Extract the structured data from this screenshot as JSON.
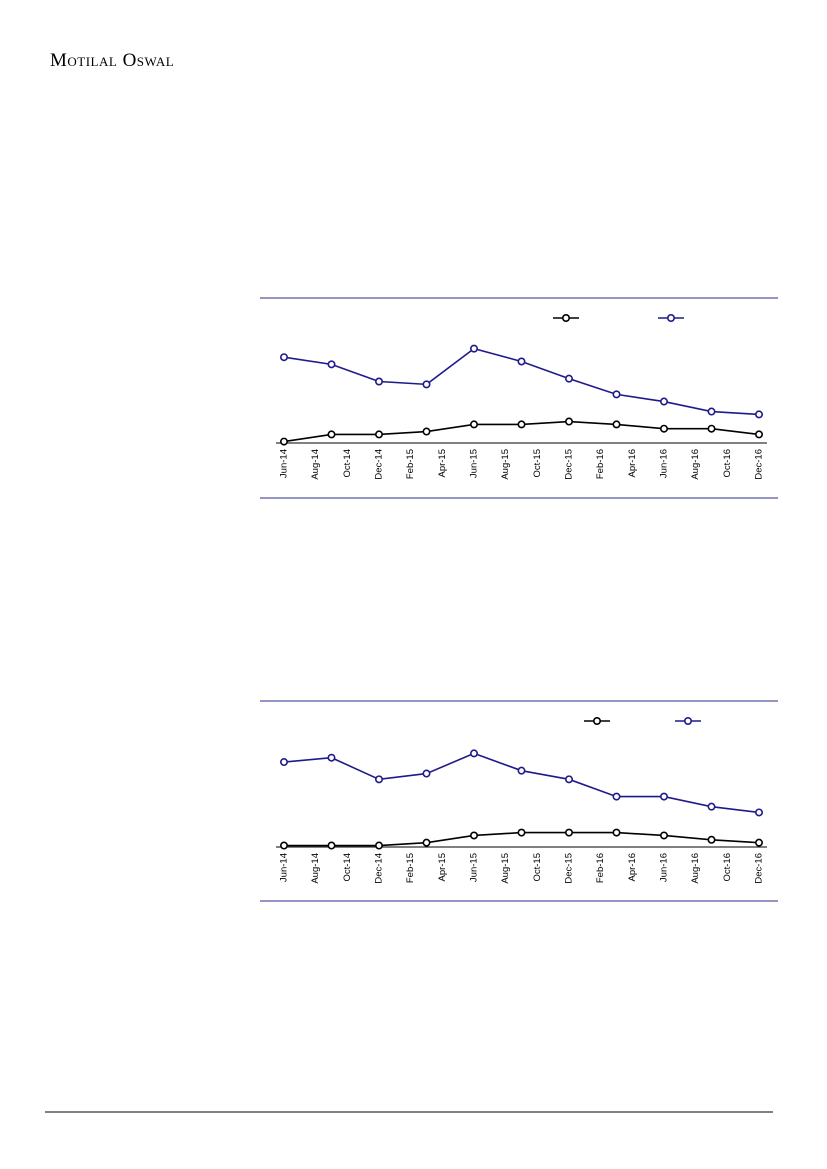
{
  "header": {
    "brand": "Motilal Oswal"
  },
  "chart_data": [
    {
      "type": "line",
      "categories": [
        "Jun-14",
        null,
        "Aug-14",
        null,
        "Oct-14",
        null,
        "Dec-14",
        null,
        "Feb-15",
        null,
        "Apr-15",
        null,
        "Jun-15",
        null,
        "Aug-15",
        null,
        "Oct-15",
        null,
        "Dec-15",
        null,
        "Feb-16",
        null,
        "Apr-16",
        null,
        "Jun-16",
        null,
        "Aug-16",
        null,
        "Oct-16",
        null,
        "Dec-16"
      ],
      "series": [
        {
          "color": "#000000",
          "values": [
            1,
            null,
            null,
            6,
            null,
            null,
            6,
            null,
            null,
            8,
            null,
            null,
            13,
            null,
            null,
            13,
            null,
            null,
            15,
            null,
            null,
            13,
            null,
            null,
            10,
            null,
            null,
            10,
            null,
            null,
            6
          ]
        },
        {
          "color": "#1f1a8a",
          "values": [
            60,
            null,
            null,
            55,
            null,
            null,
            43,
            null,
            null,
            41,
            null,
            null,
            66,
            null,
            null,
            57,
            null,
            null,
            45,
            null,
            null,
            34,
            null,
            null,
            29,
            null,
            null,
            22,
            null,
            null,
            20
          ]
        }
      ],
      "ylim": [
        0,
        100
      ]
    },
    {
      "type": "line",
      "categories": [
        "Jun-14",
        null,
        "Aug-14",
        null,
        "Oct-14",
        null,
        "Dec-14",
        null,
        "Feb-15",
        null,
        "Apr-15",
        null,
        "Jun-15",
        null,
        "Aug-15",
        null,
        "Oct-15",
        null,
        "Dec-15",
        null,
        "Feb-16",
        null,
        "Apr-16",
        null,
        "Jun-16",
        null,
        "Aug-16",
        null,
        "Oct-16",
        null,
        "Dec-16"
      ],
      "series": [
        {
          "color": "#000000",
          "values": [
            1,
            null,
            null,
            1,
            null,
            null,
            1,
            null,
            null,
            3,
            null,
            null,
            8,
            null,
            null,
            10,
            null,
            null,
            10,
            null,
            null,
            10,
            null,
            null,
            8,
            null,
            null,
            5,
            null,
            null,
            3
          ]
        },
        {
          "color": "#1f1a8a",
          "values": [
            59,
            null,
            null,
            62,
            null,
            null,
            47,
            null,
            null,
            51,
            null,
            null,
            65,
            null,
            null,
            53,
            null,
            null,
            47,
            null,
            null,
            35,
            null,
            null,
            35,
            null,
            null,
            28,
            null,
            null,
            24
          ]
        }
      ],
      "ylim": [
        0,
        100
      ]
    }
  ]
}
